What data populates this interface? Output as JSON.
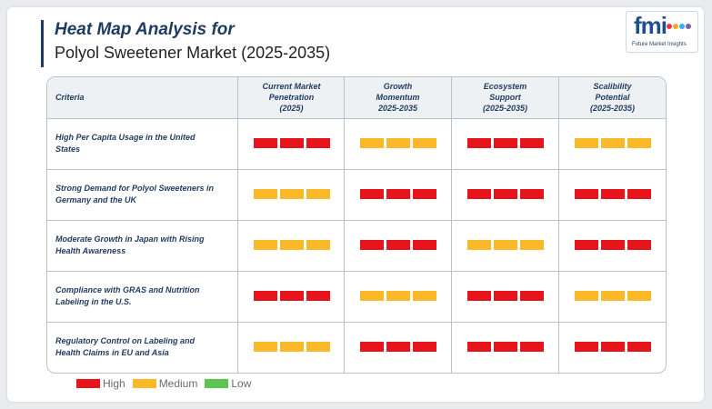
{
  "header": {
    "title_line1": "Heat Map Analysis for",
    "title_line2": "Polyol Sweetener Market (2025-2035)"
  },
  "logo": {
    "word": "fmi",
    "tagline": "Future Market Insights",
    "dot_colors": [
      "#e5384f",
      "#f5a623",
      "#3fa9f5",
      "#7b5ea7"
    ]
  },
  "colors": {
    "High": "#e8141b",
    "Medium": "#fbb829",
    "Low": "#5cc653"
  },
  "chart_data": {
    "type": "heatmap",
    "title": "Heat Map Analysis for Polyol Sweetener Market (2025-2035)",
    "row_header": "Criteria",
    "columns": [
      {
        "lines": [
          "Current Market",
          "Penetration",
          "(2025)"
        ]
      },
      {
        "lines": [
          "Growth",
          "Momentum",
          "2025-2035"
        ]
      },
      {
        "lines": [
          "Ecosystem",
          "Support",
          "(2025-2035)"
        ]
      },
      {
        "lines": [
          "Scalibility",
          "Potential",
          "(2025-2035)"
        ]
      }
    ],
    "rows": [
      {
        "lines": [
          "High Per Capita Usage in the United",
          "States"
        ],
        "values": [
          "High",
          "Medium",
          "High",
          "Medium"
        ]
      },
      {
        "lines": [
          "Strong Demand for Polyol Sweeteners in",
          "Germany and the UK"
        ],
        "values": [
          "Medium",
          "High",
          "High",
          "High"
        ]
      },
      {
        "lines": [
          "Moderate Growth in Japan with Rising",
          "Health Awareness"
        ],
        "values": [
          "Medium",
          "High",
          "Medium",
          "High"
        ]
      },
      {
        "lines": [
          "Compliance with GRAS and Nutrition",
          "Labeling in the U.S."
        ],
        "values": [
          "High",
          "Medium",
          "High",
          "Medium"
        ]
      },
      {
        "lines": [
          "Regulatory Control on Labeling and",
          "Health Claims in EU and Asia"
        ],
        "values": [
          "Medium",
          "High",
          "High",
          "High"
        ]
      }
    ],
    "legend": [
      "High",
      "Medium",
      "Low"
    ],
    "legend_placement": "bottom-left"
  }
}
